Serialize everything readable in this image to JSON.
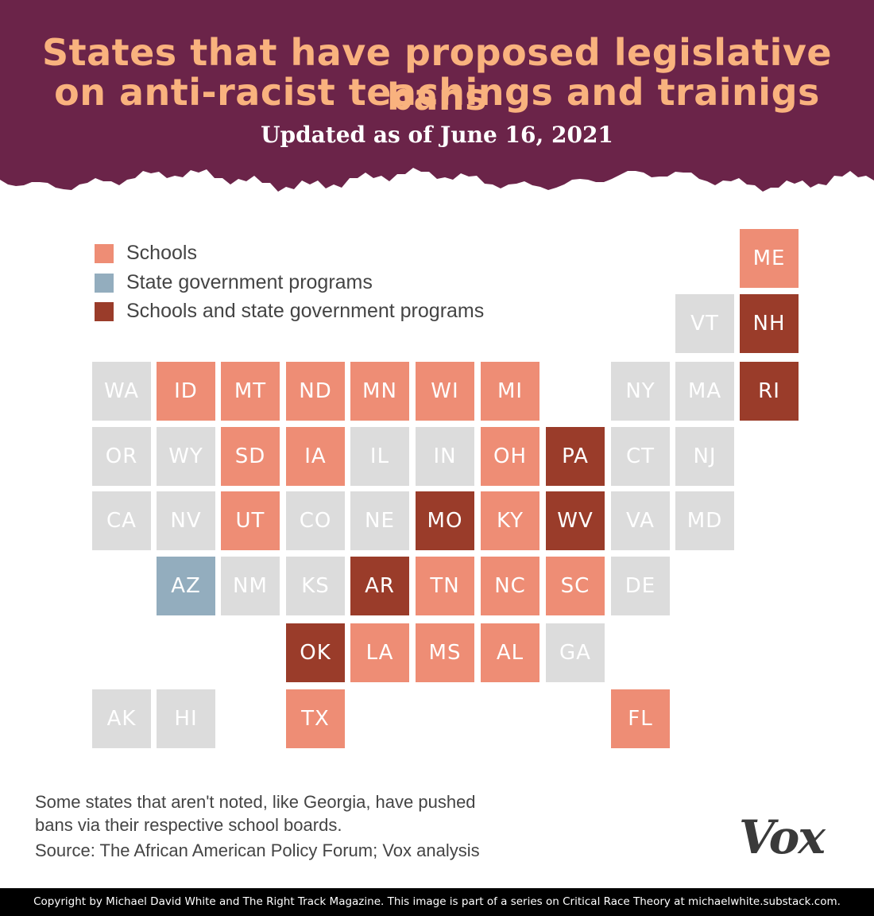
{
  "header": {
    "title_line1": "States that have proposed legislative bans",
    "title_line2": "on anti-racist teachings and trainigs",
    "subtitle": "Updated as of June 16, 2021",
    "background_color": "#6b2449",
    "title_color": "#f9b27e"
  },
  "legend": {
    "items": [
      {
        "key": "schools",
        "label": "Schools",
        "color": "#ee8d75"
      },
      {
        "key": "gov",
        "label": "State government programs",
        "color": "#93adbe"
      },
      {
        "key": "both",
        "label": "Schools and state government programs",
        "color": "#9a3c2a"
      }
    ]
  },
  "map": {
    "none_color": "#dcdcdc",
    "states": [
      {
        "abbr": "ME",
        "row": 0,
        "col": 10,
        "category": "schools"
      },
      {
        "abbr": "VT",
        "row": 1,
        "col": 9,
        "category": "none"
      },
      {
        "abbr": "NH",
        "row": 1,
        "col": 10,
        "category": "both"
      },
      {
        "abbr": "WA",
        "row": 2,
        "col": 0,
        "category": "none"
      },
      {
        "abbr": "ID",
        "row": 2,
        "col": 1,
        "category": "schools"
      },
      {
        "abbr": "MT",
        "row": 2,
        "col": 2,
        "category": "schools"
      },
      {
        "abbr": "ND",
        "row": 2,
        "col": 3,
        "category": "schools"
      },
      {
        "abbr": "MN",
        "row": 2,
        "col": 4,
        "category": "schools"
      },
      {
        "abbr": "WI",
        "row": 2,
        "col": 5,
        "category": "schools"
      },
      {
        "abbr": "MI",
        "row": 2,
        "col": 6,
        "category": "schools"
      },
      {
        "abbr": "NY",
        "row": 2,
        "col": 8,
        "category": "none"
      },
      {
        "abbr": "MA",
        "row": 2,
        "col": 9,
        "category": "none"
      },
      {
        "abbr": "RI",
        "row": 2,
        "col": 10,
        "category": "both"
      },
      {
        "abbr": "OR",
        "row": 3,
        "col": 0,
        "category": "none"
      },
      {
        "abbr": "WY",
        "row": 3,
        "col": 1,
        "category": "none"
      },
      {
        "abbr": "SD",
        "row": 3,
        "col": 2,
        "category": "schools"
      },
      {
        "abbr": "IA",
        "row": 3,
        "col": 3,
        "category": "schools"
      },
      {
        "abbr": "IL",
        "row": 3,
        "col": 4,
        "category": "none"
      },
      {
        "abbr": "IN",
        "row": 3,
        "col": 5,
        "category": "none"
      },
      {
        "abbr": "OH",
        "row": 3,
        "col": 6,
        "category": "schools"
      },
      {
        "abbr": "PA",
        "row": 3,
        "col": 7,
        "category": "both"
      },
      {
        "abbr": "CT",
        "row": 3,
        "col": 8,
        "category": "none"
      },
      {
        "abbr": "NJ",
        "row": 3,
        "col": 9,
        "category": "none"
      },
      {
        "abbr": "CA",
        "row": 4,
        "col": 0,
        "category": "none"
      },
      {
        "abbr": "NV",
        "row": 4,
        "col": 1,
        "category": "none"
      },
      {
        "abbr": "UT",
        "row": 4,
        "col": 2,
        "category": "schools"
      },
      {
        "abbr": "CO",
        "row": 4,
        "col": 3,
        "category": "none"
      },
      {
        "abbr": "NE",
        "row": 4,
        "col": 4,
        "category": "none"
      },
      {
        "abbr": "MO",
        "row": 4,
        "col": 5,
        "category": "both"
      },
      {
        "abbr": "KY",
        "row": 4,
        "col": 6,
        "category": "schools"
      },
      {
        "abbr": "WV",
        "row": 4,
        "col": 7,
        "category": "both"
      },
      {
        "abbr": "VA",
        "row": 4,
        "col": 8,
        "category": "none"
      },
      {
        "abbr": "MD",
        "row": 4,
        "col": 9,
        "category": "none"
      },
      {
        "abbr": "AZ",
        "row": 5,
        "col": 1,
        "category": "gov"
      },
      {
        "abbr": "NM",
        "row": 5,
        "col": 2,
        "category": "none"
      },
      {
        "abbr": "KS",
        "row": 5,
        "col": 3,
        "category": "none"
      },
      {
        "abbr": "AR",
        "row": 5,
        "col": 4,
        "category": "both"
      },
      {
        "abbr": "TN",
        "row": 5,
        "col": 5,
        "category": "schools"
      },
      {
        "abbr": "NC",
        "row": 5,
        "col": 6,
        "category": "schools"
      },
      {
        "abbr": "SC",
        "row": 5,
        "col": 7,
        "category": "schools"
      },
      {
        "abbr": "DE",
        "row": 5,
        "col": 8,
        "category": "none"
      },
      {
        "abbr": "OK",
        "row": 6,
        "col": 3,
        "category": "both"
      },
      {
        "abbr": "LA",
        "row": 6,
        "col": 4,
        "category": "schools"
      },
      {
        "abbr": "MS",
        "row": 6,
        "col": 5,
        "category": "schools"
      },
      {
        "abbr": "AL",
        "row": 6,
        "col": 6,
        "category": "schools"
      },
      {
        "abbr": "GA",
        "row": 6,
        "col": 7,
        "category": "none"
      },
      {
        "abbr": "AK",
        "row": 7,
        "col": 0,
        "category": "none"
      },
      {
        "abbr": "HI",
        "row": 7,
        "col": 1,
        "category": "none"
      },
      {
        "abbr": "TX",
        "row": 7,
        "col": 3,
        "category": "schools"
      },
      {
        "abbr": "FL",
        "row": 7,
        "col": 8,
        "category": "schools"
      }
    ]
  },
  "notes": {
    "line1": "Some states that aren't noted, like Georgia, have pushed",
    "line2": "bans via their respective school boards.",
    "source": "Source: The African American Policy Forum; Vox analysis"
  },
  "logo": {
    "text": "Vox"
  },
  "footer": {
    "copyright": "Copyright by Michael David White and The Right Track Magazine. This image is part of a series on Critical Race Theory at michaelwhite.substack.com."
  }
}
